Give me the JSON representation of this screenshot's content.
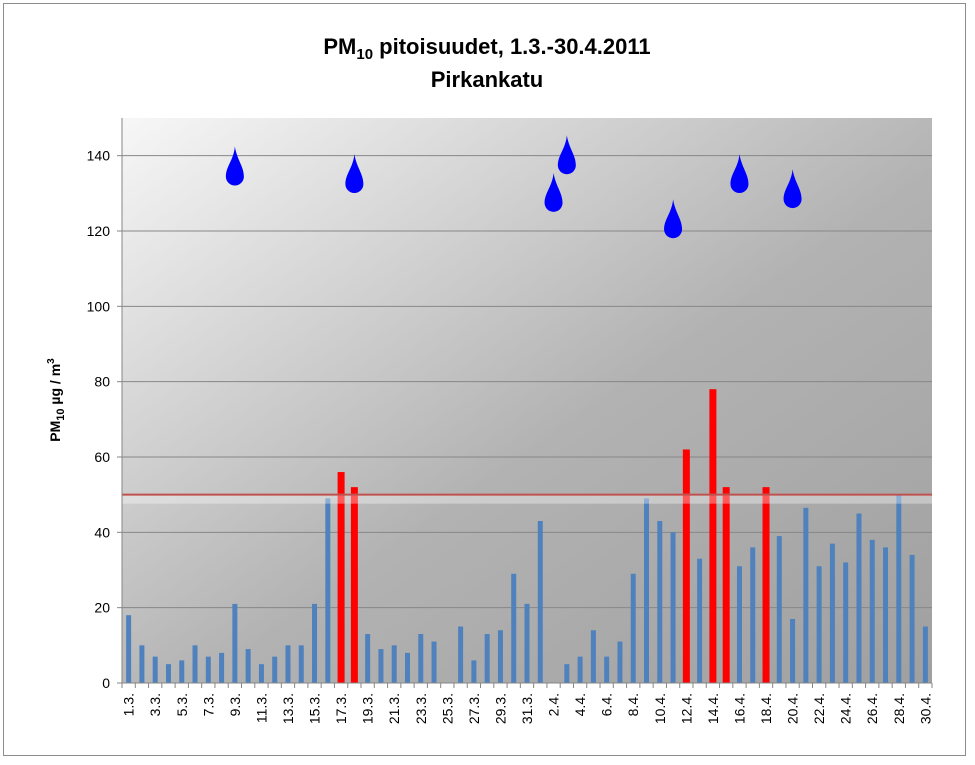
{
  "chart_data": {
    "type": "bar",
    "title": {
      "main": "PM",
      "sub": "10",
      "rest": " pitoisuudet, 1.3.-30.4.2011",
      "line2": "Pirkankatu"
    },
    "ylabel": {
      "main": "PM",
      "sub": "10",
      "rest": " µg / m",
      "sup": "3"
    },
    "ylim": [
      0,
      150
    ],
    "yticks": [
      0,
      20,
      40,
      60,
      80,
      100,
      120,
      140
    ],
    "grid": true,
    "limit_line": 50,
    "categories": [
      "1.3.",
      "2.3.",
      "3.3.",
      "4.3.",
      "5.3.",
      "6.3.",
      "7.3.",
      "8.3.",
      "9.3.",
      "10.3.",
      "11.3.",
      "12.3.",
      "13.3.",
      "14.3.",
      "15.3.",
      "16.3.",
      "17.3.",
      "18.3.",
      "19.3.",
      "20.3.",
      "21.3.",
      "22.3.",
      "23.3.",
      "24.3.",
      "25.3.",
      "26.3.",
      "27.3.",
      "28.3.",
      "29.3.",
      "30.3.",
      "31.3.",
      "1.4.",
      "2.4.",
      "3.4.",
      "4.4.",
      "5.4.",
      "6.4.",
      "7.4.",
      "8.4.",
      "9.4.",
      "10.4.",
      "11.4.",
      "12.4.",
      "13.4.",
      "14.4.",
      "15.4.",
      "16.4.",
      "17.4.",
      "18.4.",
      "19.4.",
      "20.4.",
      "21.4.",
      "22.4.",
      "23.4.",
      "24.4.",
      "25.4.",
      "26.4.",
      "27.4.",
      "28.4.",
      "29.4.",
      "30.4."
    ],
    "tick_labels": [
      "1.3.",
      "3.3.",
      "5.3.",
      "7.3.",
      "9.3.",
      "11.3.",
      "13.3.",
      "15.3.",
      "17.3.",
      "19.3.",
      "21.3.",
      "23.3.",
      "25.3.",
      "27.3.",
      "29.3.",
      "31.3.",
      "2.4.",
      "4.4.",
      "6.4.",
      "8.4.",
      "10.4.",
      "12.4.",
      "14.4.",
      "16.4.",
      "18.4.",
      "20.4.",
      "22.4.",
      "24.4.",
      "26.4.",
      "28.4.",
      "30.4."
    ],
    "values": [
      18,
      10,
      7,
      5,
      6,
      10,
      7,
      8,
      21,
      9,
      5,
      7,
      10,
      10,
      21,
      49,
      56,
      52,
      13,
      9,
      10,
      8,
      13,
      11,
      null,
      15,
      6,
      13,
      14,
      29,
      21,
      43,
      null,
      5,
      7,
      14,
      7,
      11,
      29,
      49,
      43,
      40,
      62,
      33,
      78,
      52,
      31,
      36,
      52,
      39,
      17,
      46.5,
      31,
      37,
      32,
      45,
      38,
      36,
      50,
      34,
      15
    ],
    "colors": {
      "normal": "#4f81bd",
      "exceed": "#ff0000",
      "limit_line": "#c0504d",
      "grid": "#878787"
    },
    "rain_days": [
      "9.3.",
      "18.3.",
      "2.4.",
      "3.4.",
      "11.4.",
      "16.4.",
      "20.4."
    ],
    "rain_levels": [
      135,
      133,
      128,
      138,
      121,
      133,
      129
    ],
    "rain_color": "#0000ff"
  }
}
